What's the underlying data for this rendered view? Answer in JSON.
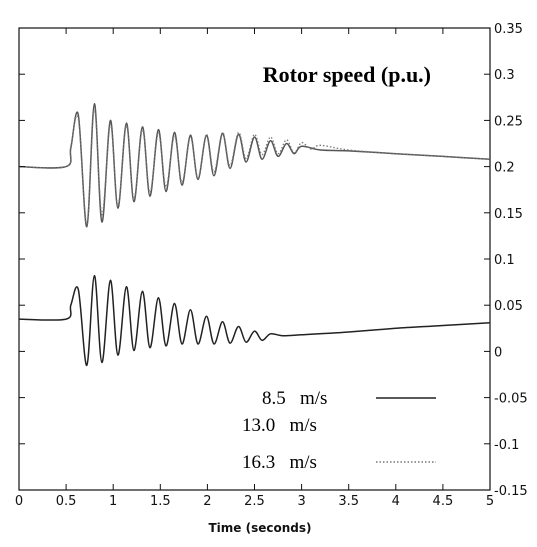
{
  "chart_data": {
    "type": "line",
    "title": "Rotor speed (p.u.)",
    "xlabel": "Time (seconds)",
    "ylabel": "",
    "xlim": [
      0,
      5
    ],
    "ylim": [
      -0.15,
      0.35
    ],
    "xticks": [
      "0",
      "0.5",
      "1",
      "1.5",
      "2",
      "2.5",
      "3",
      "3.5",
      "4",
      "4.5",
      "5"
    ],
    "yticks": [
      "-0.15",
      "-0.1",
      "-0.05",
      "0",
      "0.05",
      "0.1",
      "0.15",
      "0.2",
      "0.25",
      "0.3",
      "0.35"
    ],
    "y_axis_side": "right",
    "grid": false,
    "legend_position": "bottom-right",
    "series": [
      {
        "name": "8.5   m/s",
        "style": "solid",
        "color": "#222222",
        "x": [
          0,
          0.5,
          0.55,
          0.63,
          0.72,
          0.8,
          0.88,
          0.97,
          1.05,
          1.14,
          1.22,
          1.31,
          1.39,
          1.48,
          1.56,
          1.65,
          1.73,
          1.82,
          1.9,
          1.99,
          2.07,
          2.16,
          2.24,
          2.33,
          2.41,
          2.5,
          2.58,
          2.67,
          2.8,
          3.0,
          3.5,
          4.0,
          4.5,
          5.0
        ],
        "y": [
          0.035,
          0.035,
          0.05,
          0.067,
          -0.015,
          0.082,
          -0.012,
          0.077,
          -0.004,
          0.07,
          0.001,
          0.065,
          0.004,
          0.058,
          0.006,
          0.052,
          0.008,
          0.045,
          0.008,
          0.038,
          0.008,
          0.032,
          0.009,
          0.027,
          0.01,
          0.022,
          0.012,
          0.019,
          0.017,
          0.018,
          0.021,
          0.025,
          0.028,
          0.031
        ]
      },
      {
        "name": "13.0   m/s",
        "style": "solid",
        "color": "#555555",
        "x": [
          0,
          0.5,
          0.55,
          0.63,
          0.72,
          0.8,
          0.88,
          0.97,
          1.05,
          1.14,
          1.22,
          1.31,
          1.39,
          1.48,
          1.56,
          1.65,
          1.73,
          1.82,
          1.9,
          1.99,
          2.07,
          2.16,
          2.24,
          2.33,
          2.41,
          2.5,
          2.58,
          2.67,
          2.75,
          2.84,
          2.92,
          3.0,
          3.2,
          3.5,
          4.0,
          4.5,
          5.0
        ],
        "y": [
          0.2,
          0.2,
          0.22,
          0.256,
          0.135,
          0.268,
          0.14,
          0.25,
          0.155,
          0.247,
          0.162,
          0.243,
          0.168,
          0.24,
          0.173,
          0.237,
          0.18,
          0.234,
          0.186,
          0.234,
          0.19,
          0.236,
          0.198,
          0.235,
          0.205,
          0.232,
          0.208,
          0.228,
          0.211,
          0.225,
          0.214,
          0.222,
          0.218,
          0.217,
          0.214,
          0.211,
          0.208
        ]
      },
      {
        "name": "16.3   m/s",
        "style": "dotted",
        "color": "#777777",
        "x": [
          0,
          0.5,
          0.55,
          0.63,
          0.72,
          0.8,
          0.88,
          0.97,
          1.05,
          1.14,
          1.22,
          1.31,
          1.39,
          1.48,
          1.56,
          1.65,
          1.73,
          1.82,
          1.9,
          1.99,
          2.07,
          2.16,
          2.24,
          2.33,
          2.41,
          2.5,
          2.58,
          2.67,
          2.75,
          2.84,
          2.92,
          3.0,
          3.1,
          3.2,
          3.5,
          4.0,
          4.5,
          5.0
        ],
        "y": [
          0.2,
          0.2,
          0.222,
          0.252,
          0.138,
          0.262,
          0.148,
          0.246,
          0.158,
          0.244,
          0.165,
          0.24,
          0.172,
          0.236,
          0.178,
          0.233,
          0.183,
          0.232,
          0.188,
          0.235,
          0.194,
          0.237,
          0.201,
          0.237,
          0.209,
          0.235,
          0.213,
          0.232,
          0.214,
          0.229,
          0.215,
          0.226,
          0.219,
          0.223,
          0.218,
          0.214,
          0.211,
          0.208
        ]
      }
    ]
  }
}
